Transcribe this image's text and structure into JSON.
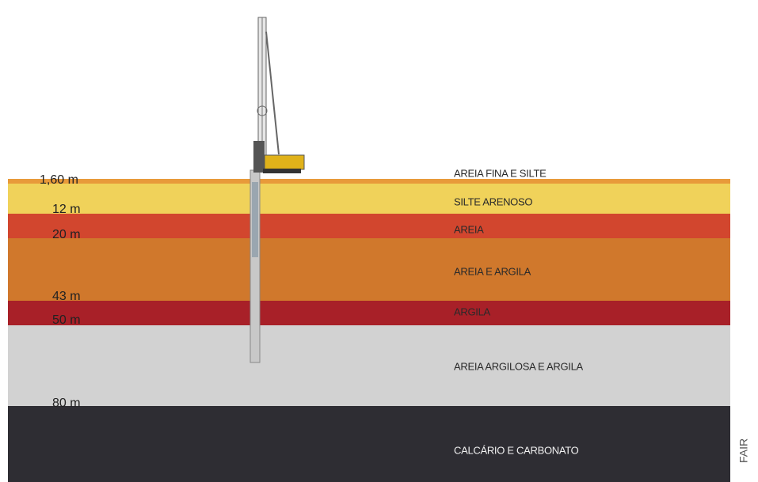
{
  "depth_labels": [
    "1,60 m",
    "12 m",
    "20 m",
    "43 m",
    "50 m",
    "80 m"
  ],
  "layers": [
    "AREIA FINA E SILTE",
    "SILTE ARENOSO",
    "AREIA",
    "AREIA E ARGILA",
    "ARGILA",
    "AREIA ARGILOSA E ARGILA",
    "CALCÁRIO E CARBONATO"
  ],
  "credit": "FAIR"
}
